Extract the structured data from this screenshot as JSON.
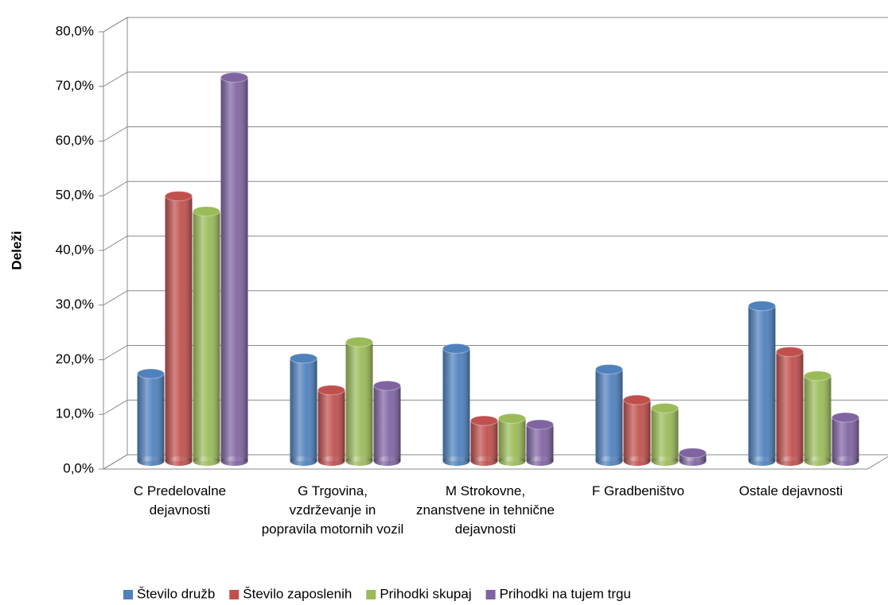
{
  "chart_data": {
    "type": "bar",
    "style": "3d-cylinder",
    "y_label": "Deleži",
    "categories": [
      "C Predelovalne dejavnosti",
      "G Trgovina, vzdrževanje in popravila motornih vozil",
      "M Strokovne, znanstvene in tehnične dejavnosti",
      "F Gradbeništvo",
      "Ostale dejavnosti"
    ],
    "series": [
      {
        "name": "Število družb",
        "color": "#4f81bd",
        "values": [
          16.0,
          18.8,
          20.6,
          16.8,
          28.4
        ]
      },
      {
        "name": "Število zaposlenih",
        "color": "#c0504d",
        "values": [
          48.5,
          13.0,
          7.4,
          11.2,
          20.0
        ]
      },
      {
        "name": "Prihodki skupaj",
        "color": "#9bbb59",
        "values": [
          45.7,
          21.8,
          7.8,
          9.7,
          15.6
        ]
      },
      {
        "name": "Prihodki na tujem trgu",
        "color": "#8064a2",
        "values": [
          70.2,
          13.8,
          6.7,
          1.5,
          8.0
        ]
      }
    ],
    "ylim": [
      0,
      80
    ],
    "yticks": [
      {
        "value": 0,
        "label": "0,0%"
      },
      {
        "value": 10,
        "label": "10,0%"
      },
      {
        "value": 20,
        "label": "20,0%"
      },
      {
        "value": 30,
        "label": "30,0%"
      },
      {
        "value": 40,
        "label": "40,0%"
      },
      {
        "value": 50,
        "label": "50,0%"
      },
      {
        "value": 60,
        "label": "60,0%"
      },
      {
        "value": 70,
        "label": "70,0%"
      },
      {
        "value": 80,
        "label": "80,0%"
      }
    ],
    "grid": true,
    "legend": "bottom"
  }
}
